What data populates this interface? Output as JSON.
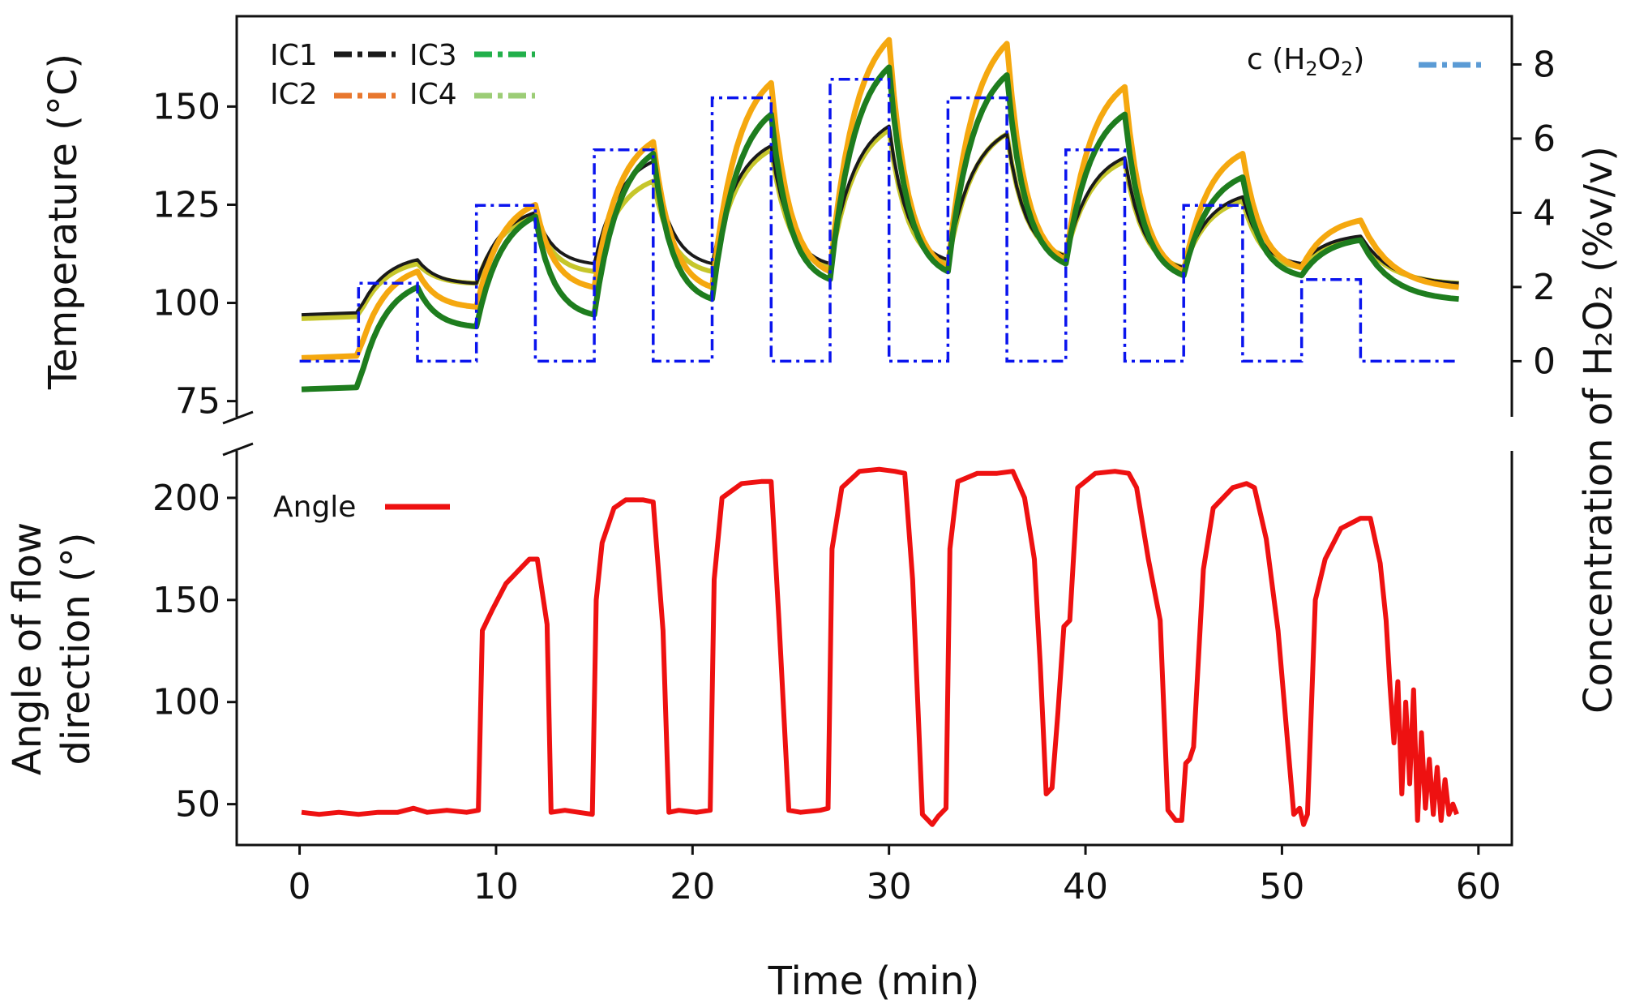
{
  "chart_data": [
    {
      "type": "line",
      "panel": "top",
      "xlabel": "Time (min)",
      "ylabel": "Temperature (°C)",
      "y2label": "Concentration of H₂O₂ (%v/v)",
      "xlim": [
        -3.2,
        61.7
      ],
      "ylim": [
        71,
        173
      ],
      "y2lim": [
        -1.5,
        9.3
      ],
      "xticks": [
        "0",
        "10",
        "20",
        "30",
        "40",
        "50",
        "60"
      ],
      "yticks": [
        "75",
        "100",
        "125",
        "150"
      ],
      "y2ticks": [
        "0",
        "2",
        "4",
        "6",
        "8"
      ],
      "legend_left": [
        "IC1",
        "IC2",
        "IC3",
        "IC4"
      ],
      "legend_right_prefix": "c (H",
      "legend_right_sub1": "2",
      "legend_right_mid": "O",
      "legend_right_sub2": "2",
      "legend_right_suffix": ")",
      "colors": {
        "IC1": "#1a1a1a",
        "IC2": "#f5a80f",
        "IC3": "#1e7d1e",
        "IC4": "#c6c62b",
        "legend_IC2": "#e8772e",
        "legend_IC3": "#22b04b",
        "legend_IC4": "#9ccd76",
        "legend_c": "#5b9bd5",
        "c": "#0a14ee"
      },
      "pulses": [
        {
          "t0": 0,
          "t1": 3,
          "rise": 0.7,
          "peaks": [
            96,
            86,
            78,
            97
          ],
          "base": [
            97,
            86,
            78,
            96
          ],
          "decay": 0.6
        },
        {
          "t0": 3,
          "t1": 6,
          "rise": 1.8,
          "peaks": [
            111,
            108,
            104,
            110
          ],
          "decay": 1.0
        },
        {
          "t0": 9,
          "t1": 12,
          "rise": 1.2,
          "peaks": [
            123,
            125,
            122,
            122
          ],
          "decay": 1.3
        },
        {
          "t0": 15,
          "t1": 18,
          "rise": 1.2,
          "peaks": [
            136,
            141,
            138,
            131
          ],
          "decay": 1.3
        },
        {
          "t0": 21,
          "t1": 24,
          "rise": 1.2,
          "peaks": [
            140,
            156,
            148,
            139
          ],
          "decay": 1.3
        },
        {
          "t0": 27,
          "t1": 30,
          "rise": 1.2,
          "peaks": [
            145,
            167,
            160,
            144
          ],
          "decay": 1.3
        },
        {
          "t0": 33,
          "t1": 36,
          "rise": 1.2,
          "peaks": [
            143,
            166,
            158,
            143
          ],
          "decay": 1.3
        },
        {
          "t0": 39,
          "t1": 42,
          "rise": 1.2,
          "peaks": [
            137,
            155,
            148,
            136
          ],
          "decay": 1.3
        },
        {
          "t0": 45,
          "t1": 48,
          "rise": 1.2,
          "peaks": [
            127,
            138,
            132,
            126
          ],
          "decay": 1.3
        },
        {
          "t0": 51,
          "t1": 54,
          "rise": 1.2,
          "peaks": [
            117,
            121,
            116,
            116
          ],
          "decay": 1.3
        }
      ],
      "troughs": [
        {
          "t": 9,
          "values": [
            105,
            99,
            94,
            105
          ]
        },
        {
          "t": 15,
          "values": [
            110,
            104,
            97,
            108
          ]
        },
        {
          "t": 21,
          "values": [
            110,
            104,
            101,
            108
          ]
        },
        {
          "t": 27,
          "values": [
            110,
            108,
            106,
            109
          ]
        },
        {
          "t": 33,
          "values": [
            111,
            109,
            108,
            110
          ]
        },
        {
          "t": 39,
          "values": [
            112,
            111,
            110,
            112
          ]
        },
        {
          "t": 45,
          "values": [
            109,
            108,
            107,
            109
          ]
        },
        {
          "t": 51,
          "values": [
            110,
            109,
            107,
            109
          ]
        },
        {
          "t": 59,
          "values": [
            105,
            104,
            101,
            105
          ]
        }
      ],
      "series_c": {
        "name": "c (H2O2)",
        "t": [
          0,
          3,
          3,
          6,
          6,
          9,
          9,
          12,
          12,
          15,
          15,
          18,
          18,
          21,
          21,
          24,
          24,
          27,
          27,
          30,
          30,
          33,
          33,
          36,
          36,
          39,
          39,
          42,
          42,
          45,
          45,
          48,
          48,
          51,
          51,
          54,
          54,
          59
        ],
        "c": [
          0,
          0,
          2.1,
          2.1,
          0,
          0,
          4.2,
          4.2,
          0,
          0,
          5.7,
          5.7,
          0,
          0,
          7.1,
          7.1,
          0,
          0,
          7.6,
          7.6,
          0,
          0,
          7.1,
          7.1,
          0,
          0,
          5.7,
          5.7,
          0,
          0,
          4.2,
          4.2,
          0,
          0,
          2.2,
          2.2,
          0,
          0
        ]
      }
    },
    {
      "type": "line",
      "panel": "bottom",
      "xlabel": "Time (min)",
      "ylabel_line1": "Angle of flow",
      "ylabel_line2": "direction (°)",
      "xlim": [
        -3.2,
        61.7
      ],
      "ylim": [
        30,
        223
      ],
      "yticks": [
        "50",
        "100",
        "150",
        "200"
      ],
      "legend": [
        "Angle"
      ],
      "color": "#ee1111",
      "series": [
        {
          "name": "Angle",
          "t": [
            0.1,
            1,
            2,
            3,
            4,
            5,
            5.8,
            6.5,
            7.5,
            8.5,
            9.1,
            9.3,
            9.8,
            10.5,
            11.2,
            11.7,
            12.1,
            12.6,
            12.8,
            13.5,
            14.2,
            14.9,
            15.1,
            15.4,
            16,
            16.6,
            17.5,
            18,
            18.5,
            18.8,
            19.3,
            20.2,
            20.9,
            21.1,
            21.5,
            22.5,
            23.5,
            24,
            24.4,
            24.9,
            25.5,
            26.5,
            26.9,
            27.1,
            27.6,
            28.5,
            29.5,
            30.3,
            30.8,
            31.2,
            31.7,
            32.2,
            32.5,
            32.9,
            33.1,
            33.5,
            34.5,
            35.5,
            36.3,
            36.9,
            37.4,
            37.7,
            38,
            38.3,
            38.6,
            38.9,
            39.2,
            39.6,
            40.5,
            41.5,
            42.2,
            42.6,
            43.2,
            43.8,
            44.2,
            44.6,
            44.9,
            45.1,
            45.3,
            45.5,
            46,
            46.5,
            47.5,
            48.2,
            48.6,
            49.2,
            49.8,
            50.2,
            50.6,
            50.9,
            51.1,
            51.3,
            51.7,
            52.2,
            53,
            54,
            54.5,
            55,
            55.3,
            55.5,
            55.7,
            55.9,
            56.1,
            56.3,
            56.5,
            56.7,
            56.9,
            57.1,
            57.3,
            57.5,
            57.7,
            57.9,
            58.1,
            58.3,
            58.5,
            58.7,
            58.9
          ],
          "v": [
            46,
            45,
            46,
            45,
            46,
            46,
            48,
            46,
            47,
            46,
            47,
            135,
            145,
            158,
            165,
            170,
            170,
            138,
            46,
            47,
            46,
            45,
            150,
            178,
            195,
            199,
            199,
            198,
            135,
            46,
            47,
            46,
            47,
            160,
            200,
            207,
            208,
            208,
            140,
            47,
            46,
            47,
            48,
            175,
            205,
            213,
            214,
            213,
            212,
            160,
            45,
            40,
            44,
            48,
            175,
            208,
            212,
            212,
            213,
            200,
            170,
            118,
            55,
            58,
            95,
            137,
            140,
            205,
            212,
            213,
            212,
            205,
            170,
            140,
            47,
            42,
            42,
            70,
            72,
            78,
            165,
            195,
            205,
            207,
            205,
            180,
            135,
            90,
            45,
            48,
            40,
            45,
            150,
            170,
            185,
            190,
            190,
            168,
            140,
            108,
            80,
            110,
            55,
            100,
            60,
            106,
            42,
            85,
            48,
            72,
            45,
            68,
            42,
            62,
            45,
            50,
            45
          ]
        }
      ]
    }
  ]
}
